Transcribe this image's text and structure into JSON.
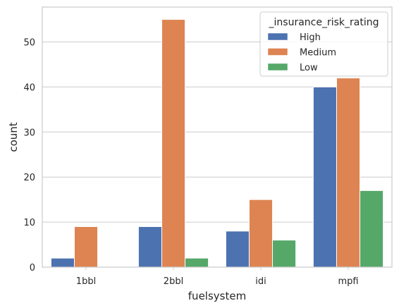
{
  "chart_data": {
    "type": "bar",
    "xlabel": "fuelsystem",
    "ylabel": "count",
    "categories": [
      "1bbl",
      "2bbl",
      "idi",
      "mpfi"
    ],
    "ylim": [
      0,
      57.75
    ],
    "yticks": [
      0,
      10,
      20,
      30,
      40,
      50
    ],
    "grid": true,
    "legend": {
      "title": "_insurance_risk_rating",
      "placement": "top-right"
    },
    "series": [
      {
        "name": "High",
        "color": "#4c72b0",
        "values": [
          2,
          9,
          8,
          40
        ]
      },
      {
        "name": "Medium",
        "color": "#dd8452",
        "values": [
          9,
          55,
          15,
          42
        ]
      },
      {
        "name": "Low",
        "color": "#55a868",
        "values": [
          0,
          2,
          6,
          17
        ]
      }
    ]
  }
}
